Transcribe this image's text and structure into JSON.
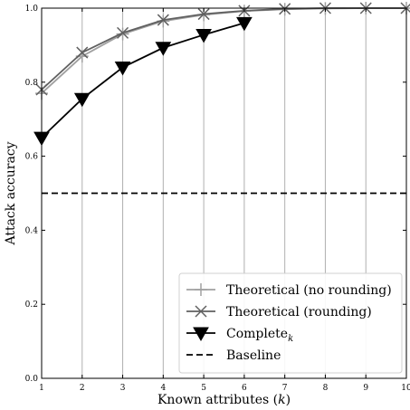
{
  "chart_data": {
    "type": "line",
    "xlabel": "Known attributes (",
    "xlabel_var": "k",
    "xlabel_close": ")",
    "ylabel": "Attack accuracy",
    "xlim": [
      1,
      10
    ],
    "ylim": [
      0.0,
      1.0
    ],
    "xticks": [
      "1",
      "2",
      "3",
      "4",
      "5",
      "6",
      "7",
      "8",
      "9",
      "10"
    ],
    "yticks": [
      "0.0",
      "0.2",
      "0.4",
      "0.6",
      "0.8",
      "1.0"
    ],
    "vertical_grid": true,
    "legend_position": "lower-right",
    "series": [
      {
        "name": "Theoretical (no rounding)",
        "marker": "plus",
        "color": "#a0a0a0",
        "x": [
          1,
          2,
          3,
          4,
          5,
          6,
          7,
          8,
          9,
          10
        ],
        "values": [
          0.77,
          0.87,
          0.93,
          0.965,
          0.982,
          0.992,
          0.997,
          0.999,
          1.0,
          1.0
        ]
      },
      {
        "name": "Theoretical (rounding)",
        "marker": "x",
        "color": "#606060",
        "x": [
          1,
          2,
          3,
          4,
          5,
          6,
          7,
          8,
          9,
          10
        ],
        "values": [
          0.78,
          0.88,
          0.933,
          0.968,
          0.984,
          0.993,
          0.998,
          1.0,
          1.0,
          1.0
        ]
      },
      {
        "name": "Complete",
        "name_subscript": "k",
        "marker": "triangle-down",
        "color": "#000000",
        "x": [
          1,
          2,
          3,
          4,
          5,
          6
        ],
        "values": [
          0.65,
          0.755,
          0.84,
          0.893,
          0.928,
          0.96
        ]
      },
      {
        "name": "Baseline",
        "marker": "none",
        "dashed": true,
        "color": "#000000",
        "x": [
          1,
          10
        ],
        "values": [
          0.5,
          0.5
        ]
      }
    ]
  }
}
